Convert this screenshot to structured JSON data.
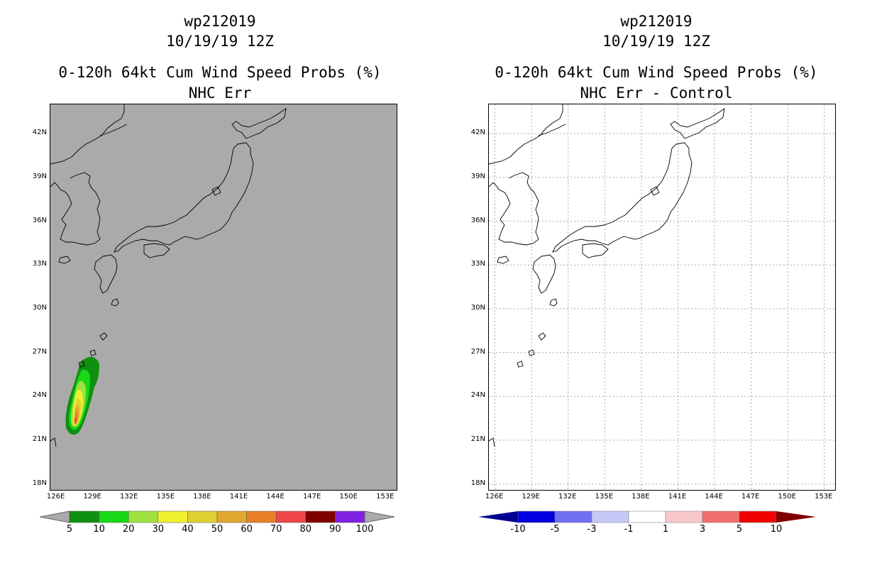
{
  "left_panel": {
    "storm_id": "wp212019",
    "datetime": "10/19/19 12Z",
    "product": "0-120h 64kt Cum Wind Speed Probs (%)",
    "subtitle": "NHC Err",
    "background_color": "#aaaaaa",
    "colorbar": {
      "labels": [
        "5",
        "10",
        "20",
        "30",
        "40",
        "50",
        "60",
        "70",
        "80",
        "90",
        "100"
      ],
      "colors": [
        "#109010",
        "#18d818",
        "#a0e040",
        "#f0f030",
        "#e0d030",
        "#e0a830",
        "#e88028",
        "#f04848",
        "#800000",
        "#8020e0"
      ],
      "end_color": "#aaaaaa"
    }
  },
  "right_panel": {
    "storm_id": "wp212019",
    "datetime": "10/19/19 12Z",
    "product": "0-120h 64kt Cum Wind Speed Probs (%)",
    "subtitle": "NHC Err - Control",
    "background_color": "#ffffff",
    "colorbar": {
      "labels": [
        "-10",
        "-5",
        "-3",
        "-1",
        "1",
        "3",
        "5",
        "10"
      ],
      "colors": [
        "#0000e0",
        "#7070f0",
        "#c8c8f8",
        "#ffffff",
        "#f8c8c8",
        "#f07070",
        "#f00000"
      ],
      "left_end_color": "#000090",
      "right_end_color": "#800000"
    }
  },
  "axes": {
    "lat_labels": [
      "42N",
      "39N",
      "36N",
      "33N",
      "30N",
      "27N",
      "24N",
      "21N",
      "18N"
    ],
    "lon_labels": [
      "126E",
      "129E",
      "132E",
      "135E",
      "138E",
      "141E",
      "144E",
      "147E",
      "150E",
      "153E"
    ],
    "lat_values": [
      42,
      39,
      36,
      33,
      30,
      27,
      24,
      21,
      18
    ],
    "lon_values": [
      126,
      129,
      132,
      135,
      138,
      141,
      144,
      147,
      150,
      153
    ],
    "lon_min": 125.5,
    "lon_max": 154.0,
    "lat_min": 17.5,
    "lat_max": 44.0
  },
  "probability_field": {
    "max_center_lon": 127.6,
    "max_center_lat": 22.5
  }
}
